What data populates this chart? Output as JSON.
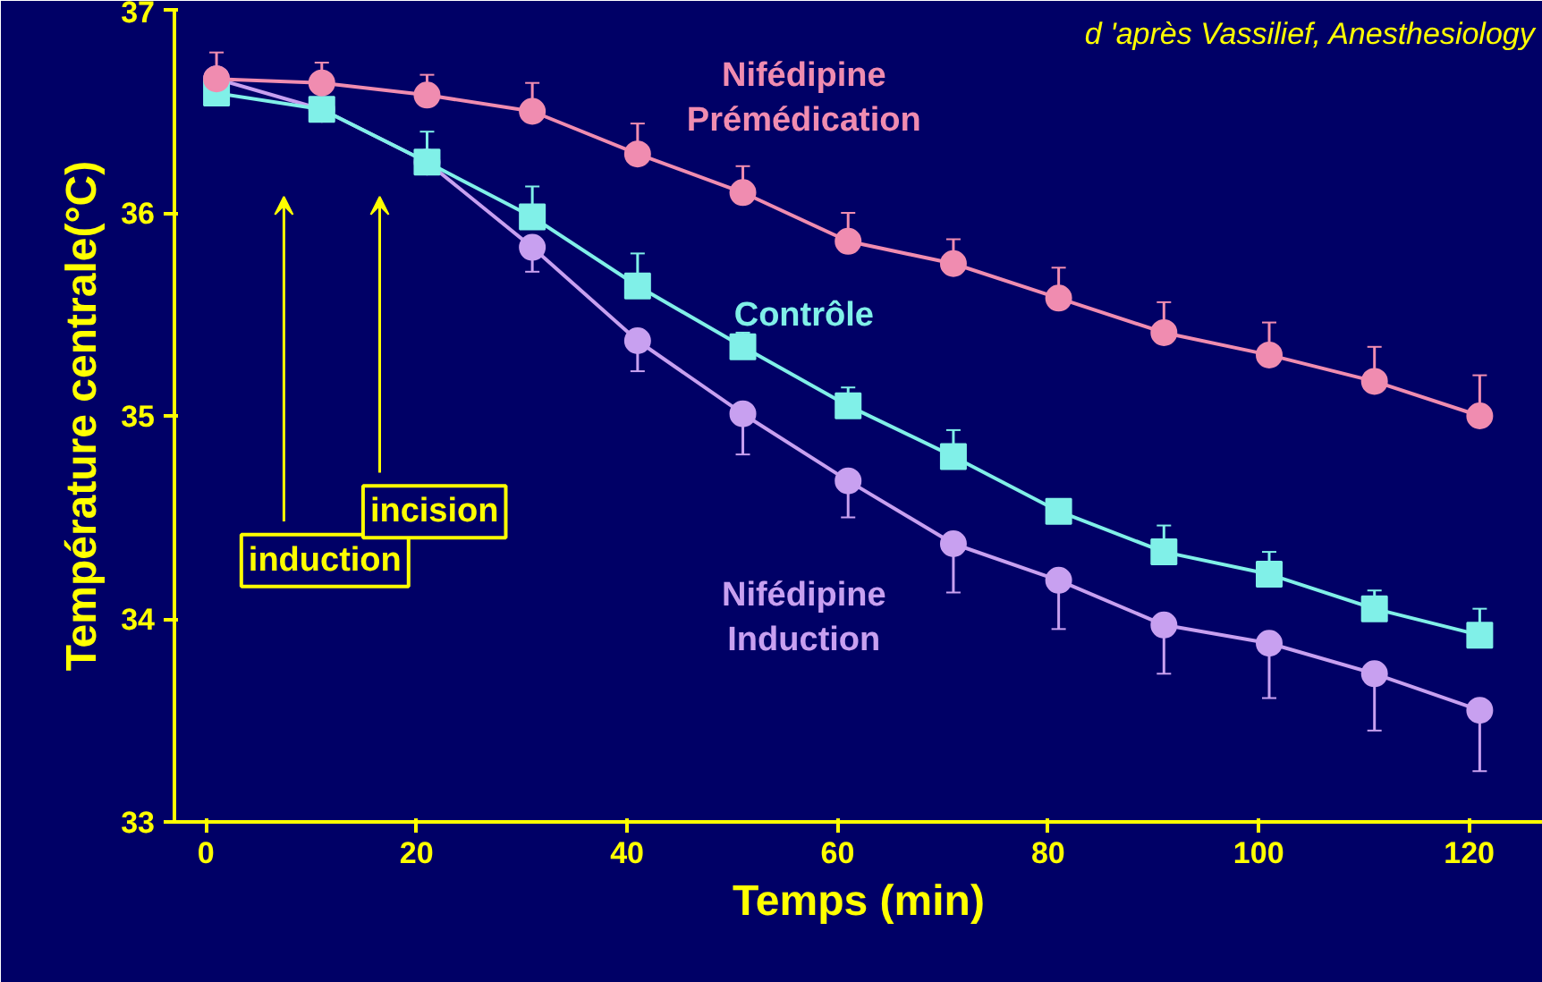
{
  "chart_data": {
    "type": "line",
    "xlabel": "Temps (min)",
    "ylabel": "Température centrale(°C)",
    "xlim": [
      -3,
      127
    ],
    "ylim": [
      33,
      37
    ],
    "xticks": [
      0,
      20,
      40,
      60,
      80,
      100,
      120
    ],
    "yticks": [
      33,
      34,
      35,
      36,
      37
    ],
    "grid": false,
    "x": [
      1,
      11,
      21,
      31,
      41,
      51,
      61,
      71,
      81,
      91,
      101,
      111,
      121
    ],
    "series": [
      {
        "name": "Nifédipine\nPrémédication",
        "color": "#f08cb0",
        "marker": "circle",
        "values": [
          36.66,
          36.64,
          36.58,
          36.5,
          36.29,
          36.1,
          35.86,
          35.75,
          35.58,
          35.41,
          35.3,
          35.17,
          35.0
        ],
        "errors": [
          [
            36.66,
            36.79
          ],
          [
            36.64,
            36.74
          ],
          [
            36.58,
            36.68
          ],
          [
            36.5,
            36.64
          ],
          [
            36.29,
            36.44
          ],
          [
            36.1,
            36.23
          ],
          [
            35.86,
            36.0
          ],
          [
            35.75,
            35.87
          ],
          [
            35.58,
            35.73
          ],
          [
            35.41,
            35.56
          ],
          [
            35.3,
            35.46
          ],
          [
            35.17,
            35.34
          ],
          [
            35.0,
            35.2
          ]
        ]
      },
      {
        "name": "Contrôle",
        "color": "#80f0e8",
        "marker": "square",
        "values": [
          36.59,
          36.51,
          36.25,
          35.98,
          35.64,
          35.34,
          35.05,
          34.8,
          34.53,
          34.33,
          34.22,
          34.05,
          33.92
        ],
        "errors": [
          null,
          [
            36.46,
            36.51
          ],
          [
            36.25,
            36.4
          ],
          [
            35.98,
            36.13
          ],
          [
            35.64,
            35.8
          ],
          [
            35.34,
            35.41
          ],
          [
            35.05,
            35.14
          ],
          [
            34.8,
            34.93
          ],
          [
            34.53,
            34.59
          ],
          [
            34.33,
            34.46
          ],
          [
            34.22,
            34.33
          ],
          [
            34.05,
            34.14
          ],
          [
            33.92,
            34.05
          ]
        ]
      },
      {
        "name": "Nifédipine\nInduction",
        "color": "#c8a0f0",
        "marker": "circle",
        "values": [
          36.66,
          36.51,
          36.25,
          35.83,
          35.37,
          35.01,
          34.68,
          34.37,
          34.19,
          33.97,
          33.88,
          33.73,
          33.55
        ],
        "errors": [
          null,
          null,
          null,
          [
            35.71,
            35.83
          ],
          [
            35.22,
            35.37
          ],
          [
            34.81,
            35.01
          ],
          [
            34.5,
            34.68
          ],
          [
            34.13,
            34.37
          ],
          [
            33.95,
            34.19
          ],
          [
            33.73,
            33.97
          ],
          [
            33.61,
            33.88
          ],
          [
            33.45,
            33.73
          ],
          [
            33.25,
            33.55
          ]
        ]
      }
    ],
    "annotations": [
      "d 'après Vassilief, Anesthesiology",
      "induction",
      "incision"
    ]
  }
}
